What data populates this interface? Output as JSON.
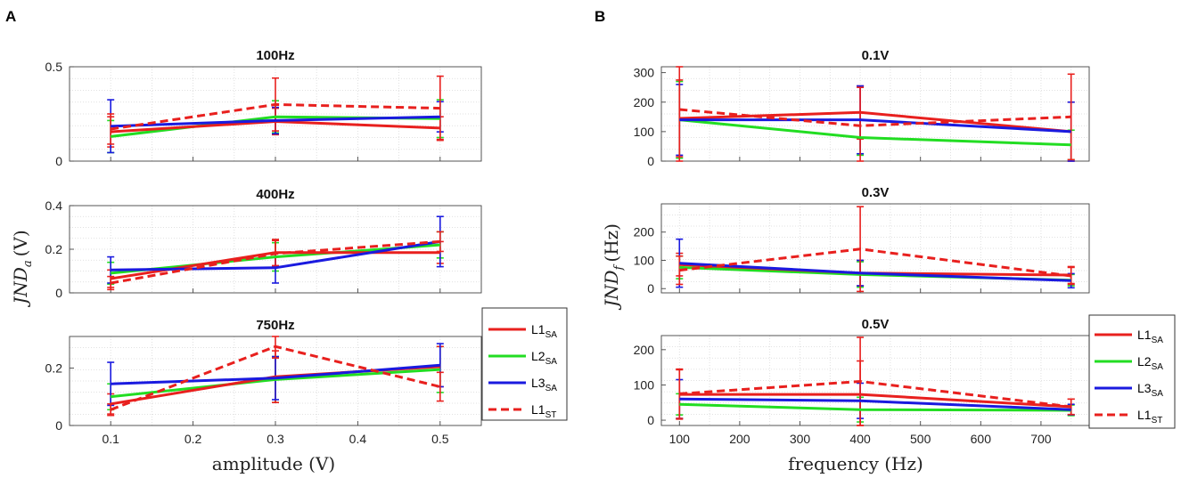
{
  "panels": {
    "A": {
      "label": "A",
      "xlabel": "amplitude (V)",
      "ylabel_main": "JND",
      "ylabel_sub": "a",
      "ylabel_unit": "(V)"
    },
    "B": {
      "label": "B",
      "xlabel": "frequency (Hz)",
      "ylabel_main": "JND",
      "ylabel_sub": "f",
      "ylabel_unit": "(Hz)"
    }
  },
  "legend": [
    {
      "base": "L1",
      "sub": "SA",
      "color": "#e8201e",
      "style": "solid"
    },
    {
      "base": "L2",
      "sub": "SA",
      "color": "#22dd22",
      "style": "solid"
    },
    {
      "base": "L3",
      "sub": "SA",
      "color": "#1a1adf",
      "style": "solid"
    },
    {
      "base": "L1",
      "sub": "ST",
      "color": "#e8201e",
      "style": "dashed"
    }
  ],
  "chart_data": [
    {
      "type": "line",
      "panel": "A",
      "title": "100Hz",
      "x": [
        0.1,
        0.3,
        0.5
      ],
      "xlim": [
        0.05,
        0.55
      ],
      "ylim": [
        0,
        0.5
      ],
      "xticks": [
        0.1,
        0.2,
        0.3,
        0.4,
        0.5
      ],
      "yticks": [
        0,
        0.5
      ],
      "yticklabels": [
        "0",
        "0.5"
      ],
      "series": [
        {
          "name": "L1SA",
          "values": [
            0.155,
            0.21,
            0.175
          ],
          "err": [
            0.08,
            0.07,
            0.06
          ]
        },
        {
          "name": "L2SA",
          "values": [
            0.13,
            0.235,
            0.225
          ],
          "err": [
            0.085,
            0.085,
            0.1
          ]
        },
        {
          "name": "L3SA",
          "values": [
            0.185,
            0.215,
            0.235
          ],
          "err": [
            0.14,
            0.07,
            0.08
          ]
        },
        {
          "name": "L1ST",
          "values": [
            0.17,
            0.3,
            0.28
          ],
          "err": [
            0.08,
            0.14,
            0.17
          ]
        }
      ]
    },
    {
      "type": "line",
      "panel": "A",
      "title": "400Hz",
      "x": [
        0.1,
        0.3,
        0.5
      ],
      "xlim": [
        0.05,
        0.55
      ],
      "ylim": [
        0,
        0.4
      ],
      "xticks": [
        0.1,
        0.2,
        0.3,
        0.4,
        0.5
      ],
      "yticks": [
        0,
        0.2,
        0.4
      ],
      "yticklabels": [
        "0",
        "0.2",
        "0.4"
      ],
      "series": [
        {
          "name": "L1SA",
          "values": [
            0.065,
            0.185,
            0.185
          ],
          "err": [
            0.04,
            0.06,
            0.05
          ]
        },
        {
          "name": "L2SA",
          "values": [
            0.09,
            0.165,
            0.22
          ],
          "err": [
            0.05,
            0.065,
            0.06
          ]
        },
        {
          "name": "L3SA",
          "values": [
            0.105,
            0.115,
            0.235
          ],
          "err": [
            0.06,
            0.07,
            0.115
          ]
        },
        {
          "name": "L1ST",
          "values": [
            0.045,
            0.18,
            0.235
          ],
          "err": [
            0.03,
            0.06,
            0.045
          ]
        }
      ]
    },
    {
      "type": "line",
      "panel": "A",
      "title": "750Hz",
      "x": [
        0.1,
        0.3,
        0.5
      ],
      "xlim": [
        0.05,
        0.55
      ],
      "ylim": [
        0,
        0.31
      ],
      "xticks": [
        0.1,
        0.2,
        0.3,
        0.4,
        0.5
      ],
      "yticks": [
        0,
        0.2
      ],
      "yticklabels": [
        "0",
        "0.2"
      ],
      "xticklabels": [
        "0.1",
        "0.2",
        "0.3",
        "0.4",
        "0.5"
      ],
      "series": [
        {
          "name": "L1SA",
          "values": [
            0.075,
            0.17,
            0.205
          ],
          "err": [
            0.035,
            0.09,
            0.07
          ]
        },
        {
          "name": "L2SA",
          "values": [
            0.1,
            0.16,
            0.195
          ],
          "err": [
            0.045,
            0.08,
            0.08
          ]
        },
        {
          "name": "L3SA",
          "values": [
            0.145,
            0.165,
            0.21
          ],
          "err": [
            0.075,
            0.075,
            0.075
          ]
        },
        {
          "name": "L1ST",
          "values": [
            0.055,
            0.275,
            0.135
          ],
          "err": [
            0.02,
            0.04,
            0.05
          ]
        }
      ]
    },
    {
      "type": "line",
      "panel": "B",
      "title": "0.1V",
      "x": [
        100,
        400,
        750
      ],
      "xlim": [
        70,
        780
      ],
      "ylim": [
        0,
        320
      ],
      "xticks": [
        100,
        200,
        300,
        400,
        500,
        600,
        700
      ],
      "yticks": [
        0,
        100,
        200,
        300
      ],
      "yticklabels": [
        "0",
        "100",
        "200",
        "300"
      ],
      "series": [
        {
          "name": "L1SA",
          "values": [
            145,
            165,
            100
          ],
          "err": [
            130,
            90,
            100
          ]
        },
        {
          "name": "L2SA",
          "values": [
            140,
            80,
            55
          ],
          "err": [
            130,
            60,
            50
          ]
        },
        {
          "name": "L3SA",
          "values": [
            140,
            140,
            100
          ],
          "err": [
            120,
            115,
            100
          ]
        },
        {
          "name": "L1ST",
          "values": [
            175,
            120,
            150
          ],
          "err": [
            180,
            130,
            145
          ]
        }
      ]
    },
    {
      "type": "line",
      "panel": "B",
      "title": "0.3V",
      "x": [
        100,
        400,
        750
      ],
      "xlim": [
        70,
        780
      ],
      "ylim": [
        -15,
        300
      ],
      "xticks": [
        100,
        200,
        300,
        400,
        500,
        600,
        700
      ],
      "yticks": [
        0,
        100,
        200
      ],
      "yticklabels": [
        "0",
        "100",
        "200"
      ],
      "series": [
        {
          "name": "L1SA",
          "values": [
            85,
            55,
            48
          ],
          "err": [
            40,
            45,
            30
          ]
        },
        {
          "name": "L2SA",
          "values": [
            75,
            50,
            30
          ],
          "err": [
            40,
            45,
            20
          ]
        },
        {
          "name": "L3SA",
          "values": [
            90,
            55,
            28
          ],
          "err": [
            85,
            45,
            25
          ]
        },
        {
          "name": "L1ST",
          "values": [
            65,
            140,
            45
          ],
          "err": [
            50,
            150,
            30
          ]
        }
      ]
    },
    {
      "type": "line",
      "panel": "B",
      "title": "0.5V",
      "x": [
        100,
        400,
        750
      ],
      "xlim": [
        70,
        780
      ],
      "ylim": [
        -15,
        240
      ],
      "xticks": [
        100,
        200,
        300,
        400,
        500,
        600,
        700
      ],
      "yticks": [
        0,
        100,
        200
      ],
      "yticklabels": [
        "0",
        "100",
        "200"
      ],
      "xticklabels": [
        "100",
        "200",
        "300",
        "400",
        "500",
        "600",
        "700"
      ],
      "series": [
        {
          "name": "L1SA",
          "values": [
            73,
            73,
            38
          ],
          "err": [
            70,
            95,
            22
          ]
        },
        {
          "name": "L2SA",
          "values": [
            45,
            30,
            28
          ],
          "err": [
            30,
            35,
            15
          ]
        },
        {
          "name": "L3SA",
          "values": [
            60,
            55,
            30
          ],
          "err": [
            55,
            50,
            15
          ]
        },
        {
          "name": "L1ST",
          "values": [
            75,
            110,
            38
          ],
          "err": [
            70,
            125,
            22
          ]
        }
      ]
    }
  ]
}
